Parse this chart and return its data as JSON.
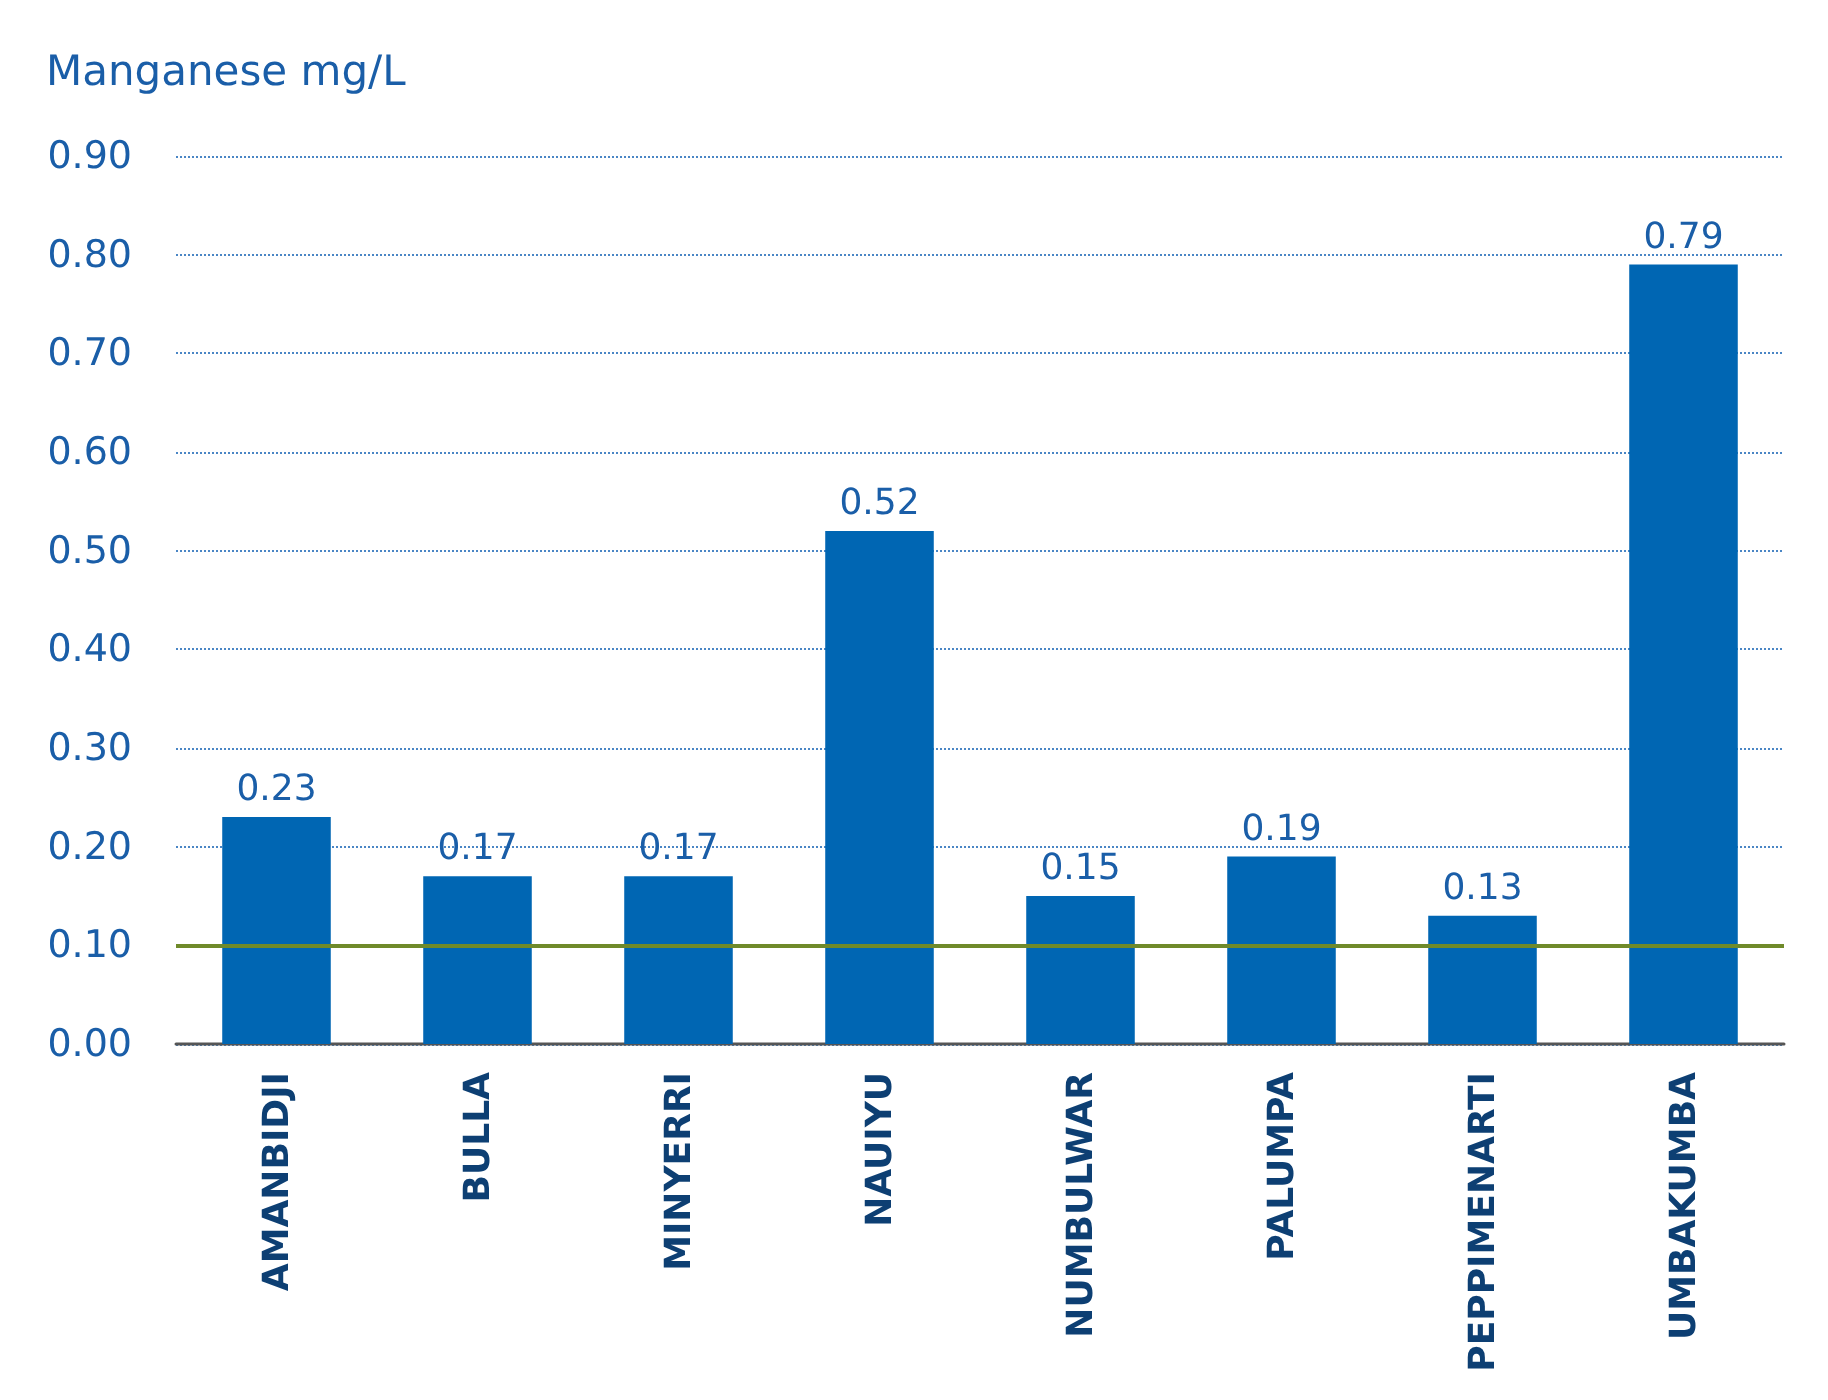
{
  "chart_data": {
    "type": "bar",
    "ylabel": "Manganese mg/L",
    "categories": [
      "AMANBIDJI",
      "BULLA",
      "MINYERRI",
      "NAUIYU",
      "NUMBULWAR",
      "PALUMPA",
      "PEPPIMENARTI",
      "UMBAKUMBA"
    ],
    "values": [
      0.23,
      0.17,
      0.17,
      0.52,
      0.15,
      0.19,
      0.13,
      0.79
    ],
    "color": "#0066b3",
    "data_labels": true,
    "grid": "y",
    "ylim": [
      0,
      0.9
    ],
    "yticks": [
      {
        "value": 0,
        "label": "0.00"
      },
      {
        "value": 0.1,
        "label": "0.10"
      },
      {
        "value": 0.2,
        "label": "0.20"
      },
      {
        "value": 0.3,
        "label": "0.30"
      },
      {
        "value": 0.4,
        "label": "0.40"
      },
      {
        "value": 0.5,
        "label": "0.50"
      },
      {
        "value": 0.6,
        "label": "0.60"
      },
      {
        "value": 0.7,
        "label": "0.70"
      },
      {
        "value": 0.8,
        "label": "0.80"
      },
      {
        "value": 0.9,
        "label": "0.90"
      }
    ],
    "ref_lines": [
      {
        "axis": "y",
        "value": 0.1,
        "color": "#6f8a2a"
      }
    ]
  }
}
